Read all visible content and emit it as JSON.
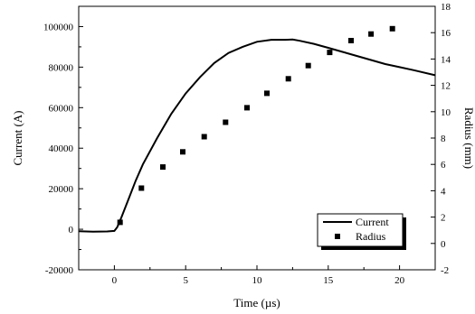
{
  "chart_data": {
    "type": "line",
    "xlabel": "Time (µs)",
    "ylabel": "Current (A)",
    "y2label": "Radius (mm)",
    "xlim": [
      -2.5,
      22.5
    ],
    "ylim": [
      -20000,
      110000
    ],
    "y2lim": [
      -2,
      18
    ],
    "xticks": [
      0,
      5,
      10,
      15,
      20
    ],
    "yticks": [
      -20000,
      0,
      20000,
      40000,
      60000,
      80000,
      100000
    ],
    "y2ticks": [
      -2,
      0,
      2,
      4,
      6,
      8,
      10,
      12,
      14,
      16,
      18
    ],
    "grid": false,
    "legend": "bottom-right",
    "series": [
      {
        "name": "Current",
        "style": "line",
        "axis": "left",
        "x": [
          -2.5,
          -1.5,
          -0.5,
          0,
          0.2,
          0.5,
          1,
          1.5,
          2,
          3,
          4,
          5,
          6,
          7,
          8,
          9,
          10,
          11,
          12,
          12.5,
          13,
          14,
          15,
          16,
          17,
          18,
          19,
          20,
          21,
          22.5
        ],
        "y": [
          -1000,
          -1200,
          -1100,
          -800,
          1000,
          6000,
          15000,
          24000,
          32000,
          45000,
          57000,
          67000,
          75000,
          82000,
          87000,
          90000,
          92500,
          93500,
          93500,
          93600,
          93000,
          91500,
          89500,
          87500,
          85500,
          83500,
          81500,
          80000,
          78500,
          76000
        ]
      },
      {
        "name": "Radius",
        "style": "scatter",
        "axis": "right",
        "x": [
          0.4,
          1.9,
          3.4,
          4.8,
          6.3,
          7.8,
          9.3,
          10.7,
          12.2,
          13.6,
          15.1,
          16.6,
          18.0,
          19.5
        ],
        "y": [
          1.6,
          4.2,
          5.8,
          6.95,
          8.1,
          9.2,
          10.3,
          11.4,
          12.5,
          13.5,
          14.5,
          15.4,
          15.9,
          16.3
        ]
      }
    ]
  }
}
